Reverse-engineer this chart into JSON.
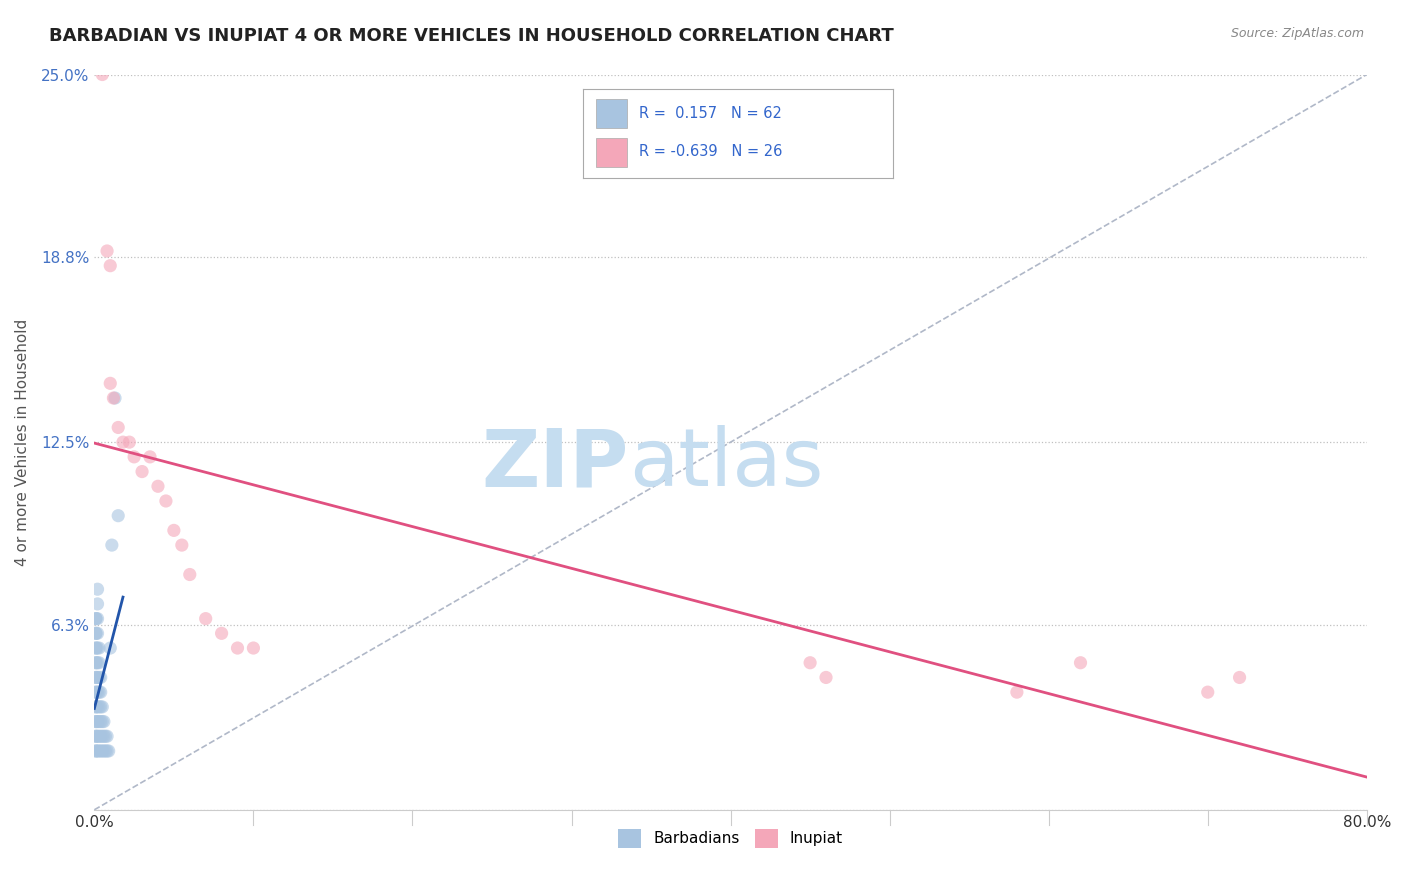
{
  "title": "BARBADIAN VS INUPIAT 4 OR MORE VEHICLES IN HOUSEHOLD CORRELATION CHART",
  "source": "Source: ZipAtlas.com",
  "ylabel": "4 or more Vehicles in Household",
  "xlim": [
    0.0,
    0.8
  ],
  "ylim": [
    0.0,
    0.25
  ],
  "xticks": [
    0.0,
    0.1,
    0.2,
    0.3,
    0.4,
    0.5,
    0.6,
    0.7,
    0.8
  ],
  "xticklabels": [
    "0.0%",
    "",
    "",
    "",
    "",
    "",
    "",
    "",
    "80.0%"
  ],
  "ytick_positions": [
    0.0,
    0.063,
    0.125,
    0.188,
    0.25
  ],
  "ytick_labels": [
    "",
    "6.3%",
    "12.5%",
    "18.8%",
    "25.0%"
  ],
  "barbadian_color": "#a8c4e0",
  "inupiat_color": "#f4a7b9",
  "barbadian_line_color": "#2255aa",
  "inupiat_line_color": "#e05080",
  "R_barbadian": 0.157,
  "N_barbadian": 62,
  "R_inupiat": -0.639,
  "N_inupiat": 26,
  "legend_labels": [
    "Barbadians",
    "Inupiat"
  ],
  "watermark_zip": "ZIP",
  "watermark_atlas": "atlas",
  "watermark_color_zip": "#c8dff0",
  "watermark_color_atlas": "#c8dff0",
  "background_color": "#ffffff",
  "title_fontsize": 13,
  "scatter_alpha": 0.6,
  "scatter_size": 90,
  "barbadian_x": [
    0.001,
    0.001,
    0.001,
    0.001,
    0.001,
    0.001,
    0.001,
    0.001,
    0.001,
    0.001,
    0.001,
    0.001,
    0.001,
    0.001,
    0.001,
    0.001,
    0.001,
    0.001,
    0.001,
    0.001,
    0.002,
    0.002,
    0.002,
    0.002,
    0.002,
    0.002,
    0.002,
    0.002,
    0.002,
    0.002,
    0.002,
    0.002,
    0.003,
    0.003,
    0.003,
    0.003,
    0.003,
    0.003,
    0.003,
    0.003,
    0.004,
    0.004,
    0.004,
    0.004,
    0.004,
    0.004,
    0.005,
    0.005,
    0.005,
    0.005,
    0.006,
    0.006,
    0.006,
    0.007,
    0.007,
    0.008,
    0.008,
    0.009,
    0.01,
    0.011,
    0.013,
    0.015
  ],
  "barbadian_y": [
    0.02,
    0.025,
    0.03,
    0.035,
    0.04,
    0.045,
    0.05,
    0.055,
    0.06,
    0.065,
    0.02,
    0.025,
    0.03,
    0.035,
    0.04,
    0.045,
    0.05,
    0.055,
    0.06,
    0.065,
    0.02,
    0.025,
    0.03,
    0.035,
    0.04,
    0.045,
    0.05,
    0.055,
    0.06,
    0.065,
    0.07,
    0.075,
    0.02,
    0.025,
    0.03,
    0.035,
    0.04,
    0.045,
    0.05,
    0.055,
    0.02,
    0.025,
    0.03,
    0.035,
    0.04,
    0.045,
    0.02,
    0.025,
    0.03,
    0.035,
    0.02,
    0.025,
    0.03,
    0.02,
    0.025,
    0.02,
    0.025,
    0.02,
    0.055,
    0.09,
    0.14,
    0.1
  ],
  "inupiat_x": [
    0.005,
    0.008,
    0.01,
    0.01,
    0.012,
    0.015,
    0.018,
    0.022,
    0.025,
    0.03,
    0.035,
    0.04,
    0.045,
    0.05,
    0.055,
    0.06,
    0.07,
    0.08,
    0.09,
    0.1,
    0.45,
    0.46,
    0.58,
    0.62,
    0.7,
    0.72
  ],
  "inupiat_y": [
    0.25,
    0.19,
    0.185,
    0.145,
    0.14,
    0.13,
    0.125,
    0.125,
    0.12,
    0.115,
    0.12,
    0.11,
    0.105,
    0.095,
    0.09,
    0.08,
    0.065,
    0.06,
    0.055,
    0.055,
    0.05,
    0.045,
    0.04,
    0.05,
    0.04,
    0.045
  ]
}
